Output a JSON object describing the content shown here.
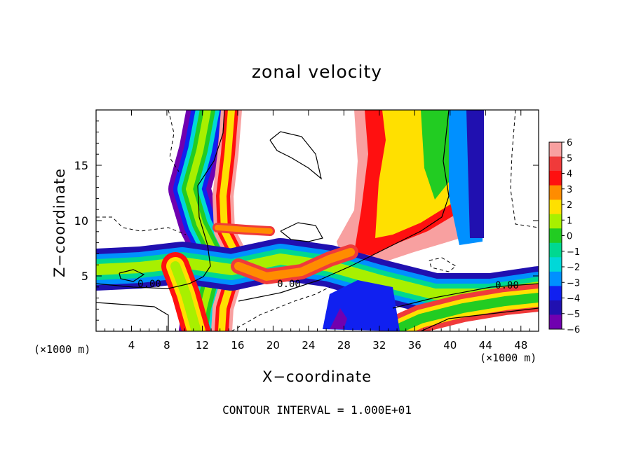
{
  "chart_data": {
    "type": "heatmap",
    "title": "zonal velocity",
    "xlabel": "X−coordinate",
    "ylabel": "Z−coordinate",
    "x_unit": "(×1000 m)",
    "xlim": [
      0,
      50
    ],
    "ylim": [
      0,
      20
    ],
    "x_ticks": [
      "4",
      "8",
      "12",
      "16",
      "20",
      "24",
      "28",
      "32",
      "36",
      "40",
      "44",
      "48"
    ],
    "y_ticks": [
      "5",
      "10",
      "15"
    ],
    "colorbar": {
      "ticks": [
        "6",
        "5",
        "4",
        "3",
        "2",
        "1",
        "0",
        "−1",
        "−2",
        "−3",
        "−4",
        "−5",
        "−6"
      ],
      "colors": [
        "#f8a0a0",
        "#f03a3a",
        "#ff1010",
        "#ff8c00",
        "#ffe000",
        "#a8f000",
        "#22cc22",
        "#00d890",
        "#00d8d8",
        "#0090ff",
        "#1020f0",
        "#2010b0",
        "#7000b0"
      ]
    },
    "contour_labels": [
      "0.00",
      "0.00",
      "0.00"
    ],
    "footer": "CONTOUR INTERVAL = 1.000E+01"
  }
}
